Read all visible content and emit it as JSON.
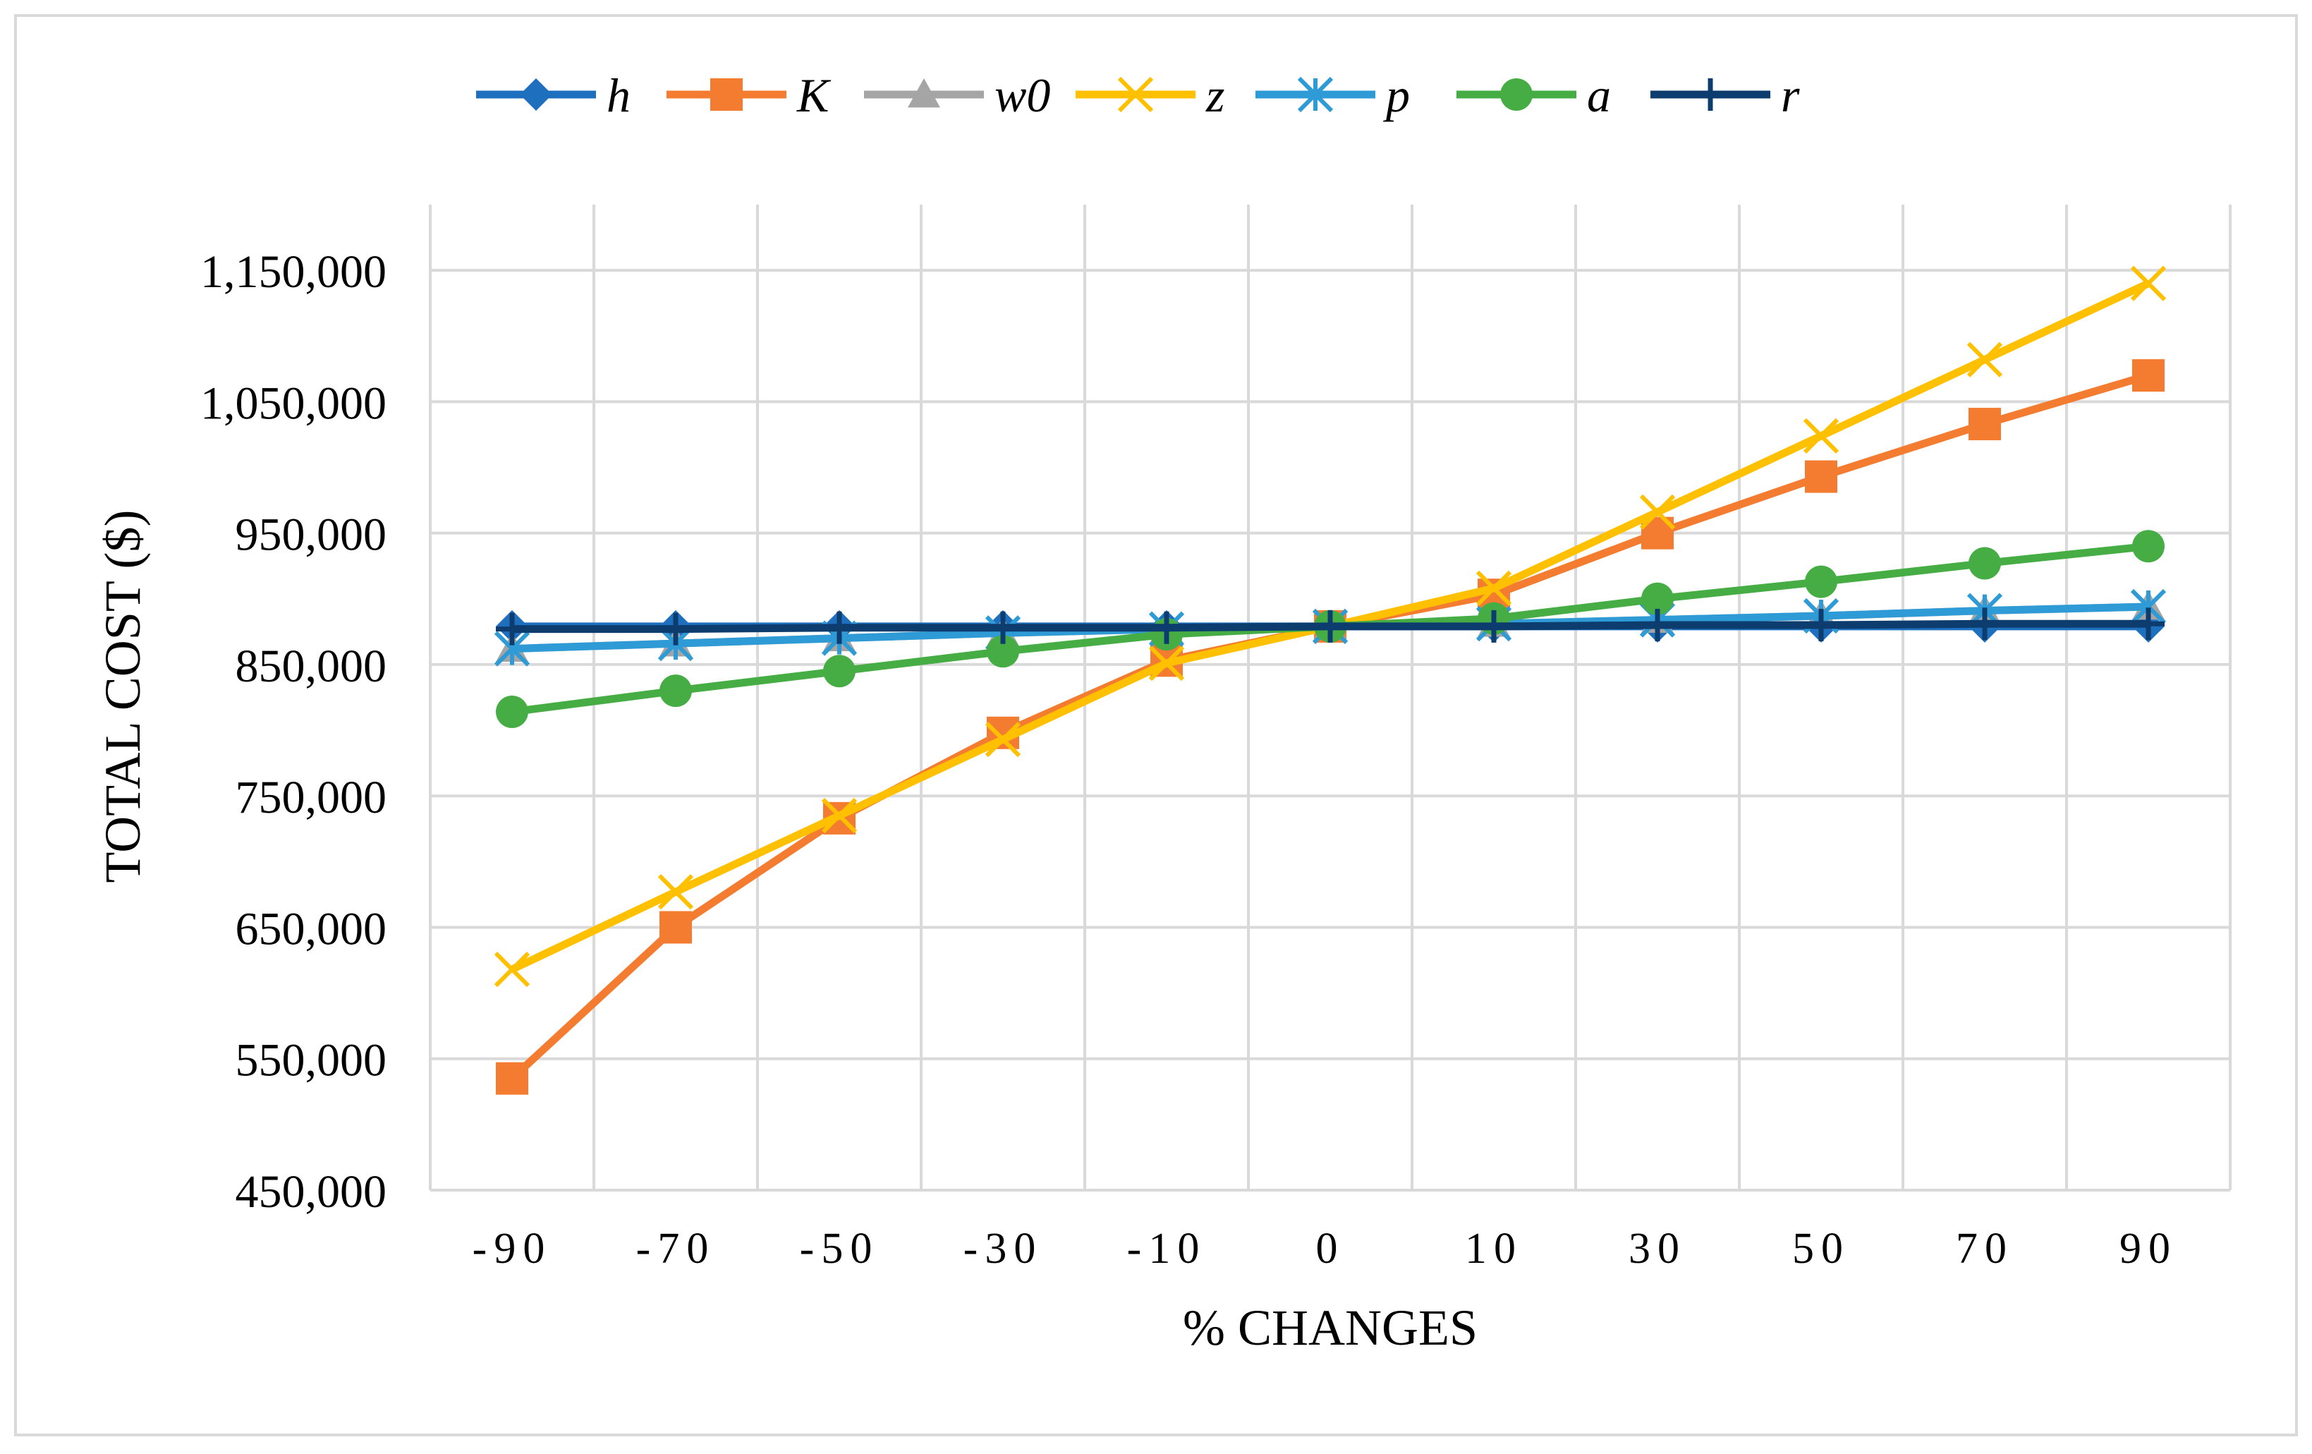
{
  "chart_data": {
    "type": "line",
    "title": "",
    "xlabel": "% CHANGES",
    "ylabel": "TOTAL COST ($)",
    "categories": [
      "-90",
      "-70",
      "-50",
      "-30",
      "-10",
      "0",
      "10",
      "30",
      "50",
      "70",
      "90"
    ],
    "y_ticks": [
      "450,000",
      "550,000",
      "650,000",
      "750,000",
      "850,000",
      "950,000",
      "1,050,000",
      "1,150,000"
    ],
    "y_tick_values": [
      450000,
      550000,
      650000,
      750000,
      850000,
      950000,
      1050000,
      1150000
    ],
    "ylim": [
      450000,
      1200000
    ],
    "grid": true,
    "legend_position": "top",
    "series": [
      {
        "name": "h",
        "color": "#1f6fbf",
        "marker": "diamond",
        "values": [
          879000,
          879000,
          879000,
          879000,
          879000,
          879000,
          879000,
          879000,
          879000,
          879000,
          879000
        ]
      },
      {
        "name": "K",
        "color": "#f47c30",
        "marker": "square",
        "values": [
          535000,
          650000,
          733000,
          798000,
          853000,
          879000,
          903000,
          950000,
          993000,
          1033000,
          1070000
        ]
      },
      {
        "name": "w0",
        "color": "#a5a5a5",
        "marker": "triangle",
        "values": [
          862000,
          866000,
          870000,
          874000,
          877000,
          879000,
          881000,
          884000,
          887000,
          891000,
          894000
        ]
      },
      {
        "name": "z",
        "color": "#ffc000",
        "marker": "x",
        "values": [
          618000,
          677000,
          735000,
          793000,
          851000,
          879000,
          908000,
          966000,
          1024000,
          1082000,
          1140000
        ]
      },
      {
        "name": "p",
        "color": "#2e9bd6",
        "marker": "asterisk",
        "values": [
          862000,
          866000,
          870000,
          874000,
          877000,
          879000,
          881000,
          884000,
          887000,
          891000,
          894000
        ]
      },
      {
        "name": "a",
        "color": "#46ad45",
        "marker": "circle",
        "values": [
          814000,
          830000,
          845000,
          860000,
          873000,
          879000,
          885000,
          900000,
          913000,
          927000,
          940000
        ]
      },
      {
        "name": "r",
        "color": "#0d3d6e",
        "marker": "plus",
        "values": [
          877000,
          877000,
          878000,
          878000,
          878000,
          879000,
          879000,
          880000,
          880000,
          881000,
          881000
        ]
      }
    ]
  }
}
